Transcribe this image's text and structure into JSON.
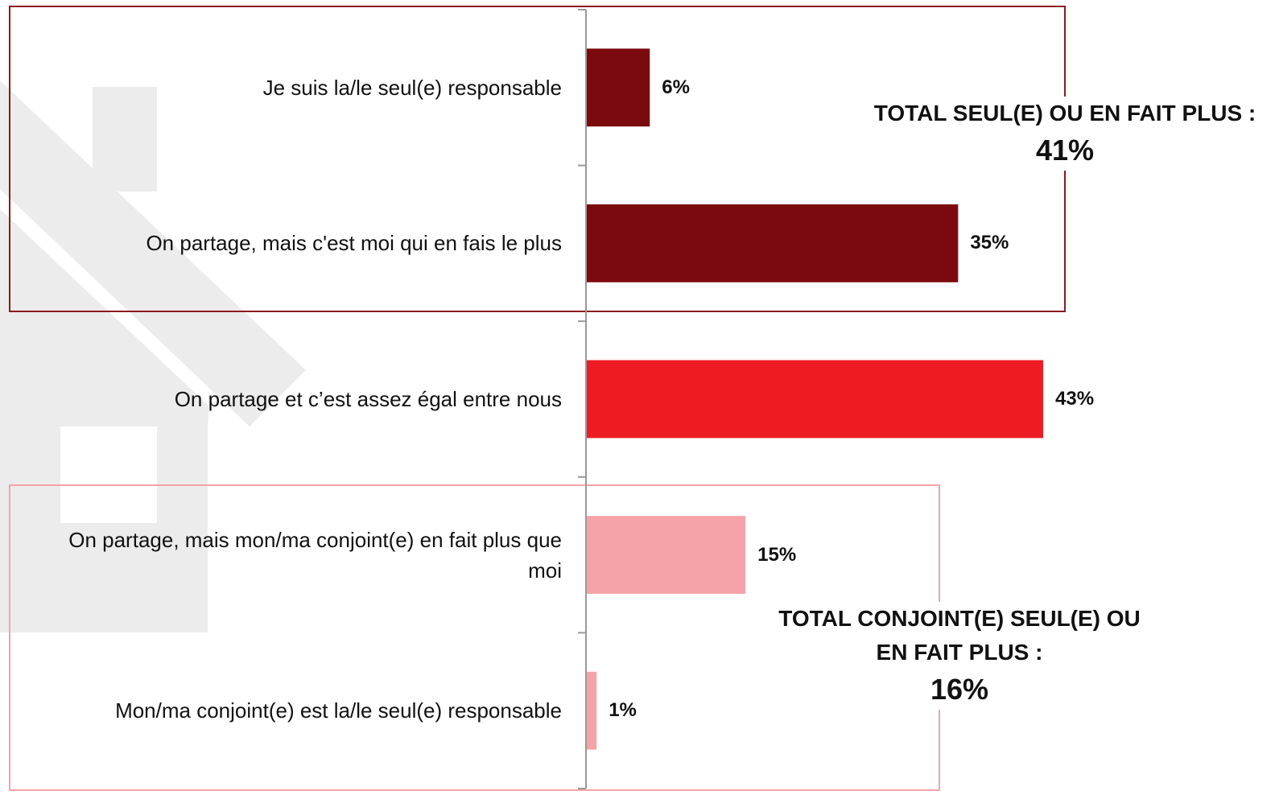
{
  "chart_data": {
    "type": "bar",
    "orientation": "horizontal",
    "categories": [
      "Je suis la/le seul(e) responsable",
      "On partage, mais c'est moi qui en fais le plus",
      "On partage et c’est assez égal entre nous",
      "On partage, mais mon/ma conjoint(e) en fait plus que moi",
      "Mon/ma conjoint(e) est la/le seul(e) responsable"
    ],
    "values": [
      6,
      35,
      43,
      15,
      1
    ],
    "value_labels": [
      "6%",
      "35%",
      "43%",
      "15%",
      "1%"
    ],
    "colors": [
      "#7b0a0e",
      "#7b0a0e",
      "#ed1c24",
      "#f5a3a8",
      "#f5a3a8"
    ],
    "annotations": [
      {
        "text": "TOTAL SEUL(E) OU EN FAIT PLUS :",
        "value": "41%"
      },
      {
        "text": "TOTAL CONJOINT(E) SEUL(E) OU EN FAIT PLUS :",
        "value": "16%"
      }
    ]
  }
}
